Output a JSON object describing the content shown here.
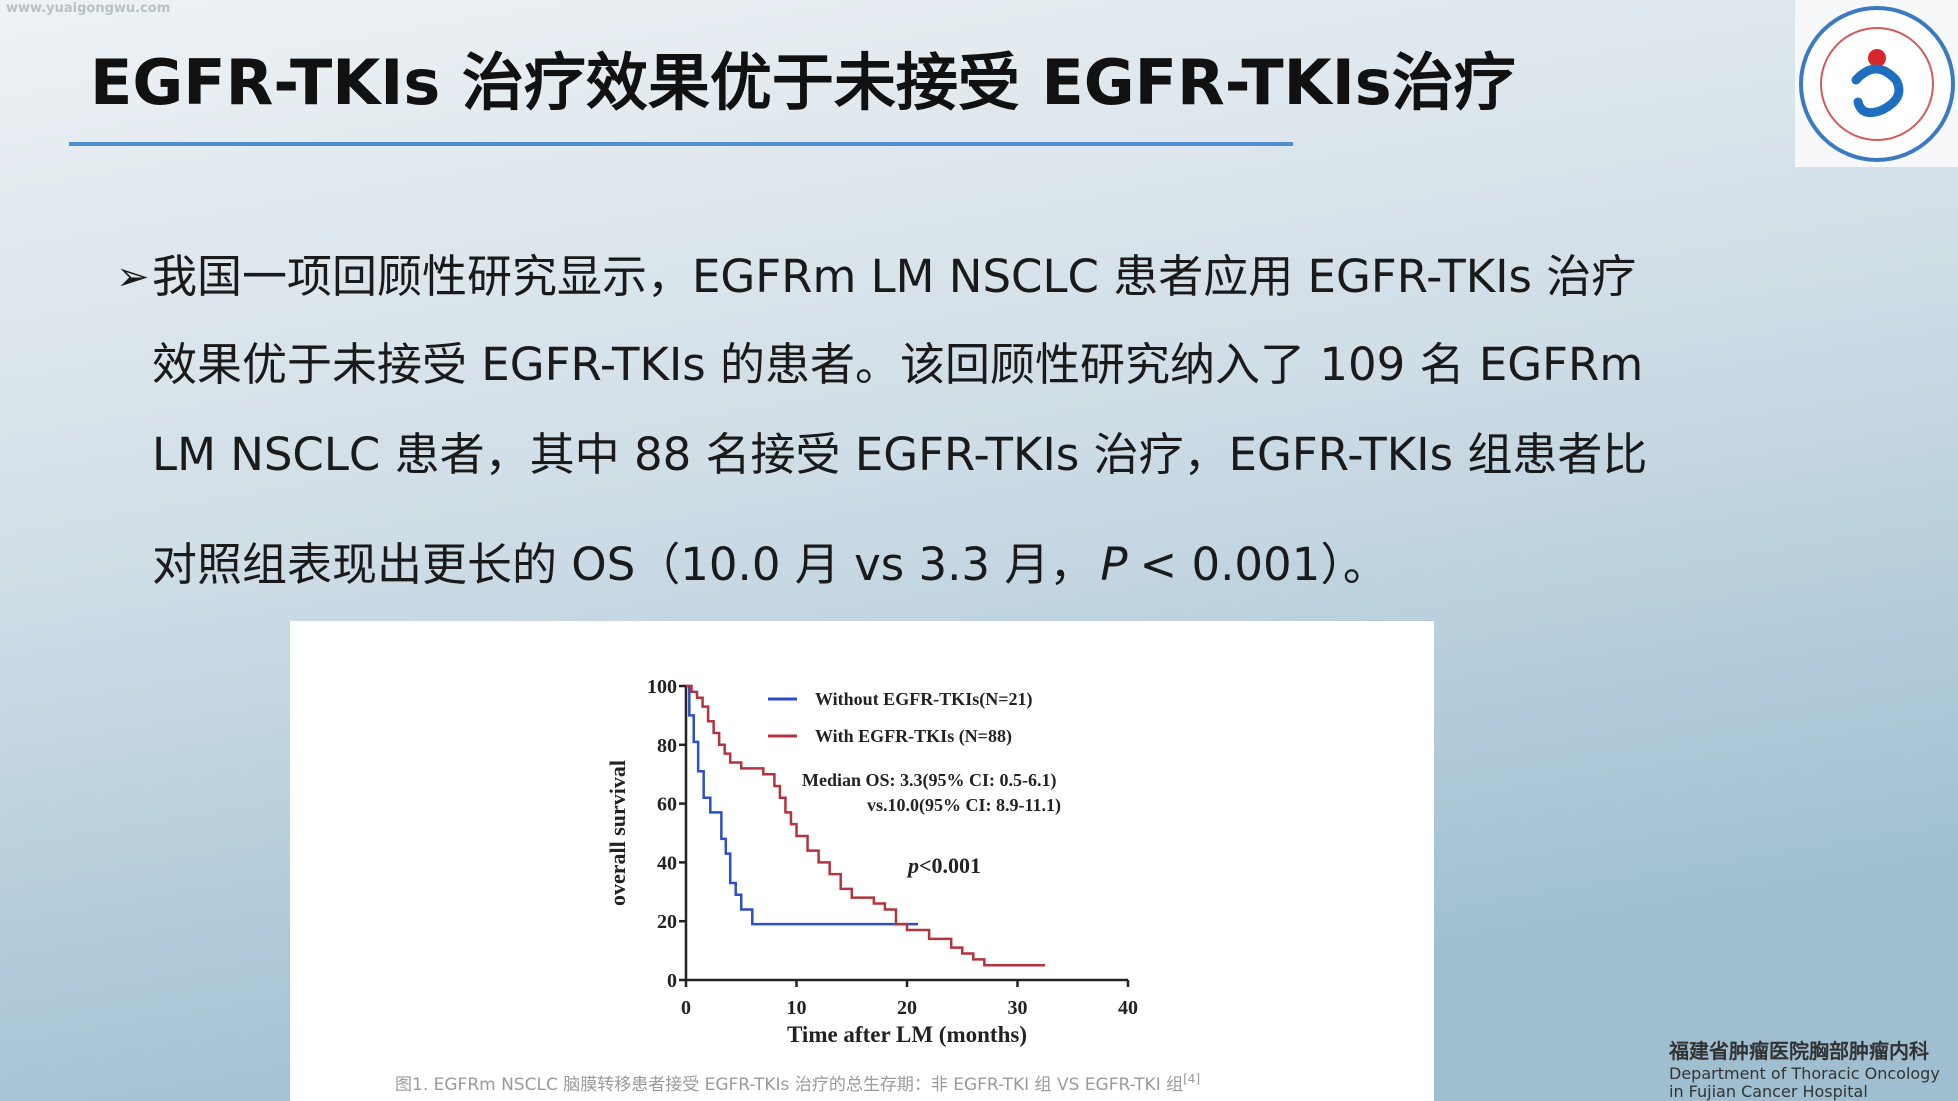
{
  "watermark": "www.yuaigongwu.com",
  "title": "EGFR-TKIs 治疗效果优于未接受 EGFR-TKIs治疗",
  "body": {
    "bullet": "➢",
    "lines": [
      "我国一项回顾性研究显示，EGFRm LM NSCLC 患者应用 EGFR-TKIs 治疗",
      "效果优于未接受 EGFR-TKIs 的患者。该回顾性研究纳入了 109 名 EGFRm",
      "LM NSCLC 患者，其中 88 名接受 EGFR-TKIs 治疗，EGFR-TKIs 组患者比"
    ],
    "last_line": [
      "对照组表现出更长的 OS（10.0 月 vs 3.3 月，",
      "P",
      "< 0.001）。"
    ]
  },
  "chart_data": {
    "type": "line",
    "step": true,
    "ylabel": "overall survival",
    "xlabel": "Time after LM (months)",
    "xlim": [
      0,
      40
    ],
    "ylim": [
      0,
      100
    ],
    "xticks": [
      0,
      10,
      20,
      30,
      40
    ],
    "yticks": [
      0,
      20,
      40,
      60,
      80,
      100
    ],
    "annotations": [
      "Median OS: 3.3(95% CI: 0.5-6.1)",
      "vs.10.0(95% CI: 8.9-11.1)"
    ],
    "p_annotation": [
      "p",
      "<0.001"
    ],
    "series": [
      {
        "name": "Without EGFR-TKIs(N=21)",
        "color": "#2b4fc4",
        "x": [
          0,
          0.3,
          0.3,
          0.7,
          0.7,
          1.1,
          1.1,
          1.6,
          1.6,
          2.2,
          2.2,
          3.2,
          3.2,
          3.6,
          3.6,
          4,
          4,
          4.5,
          4.5,
          5,
          5,
          6,
          6,
          21
        ],
        "values": [
          100,
          100,
          90,
          90,
          81,
          81,
          71,
          71,
          62,
          62,
          57,
          57,
          48,
          48,
          43,
          43,
          33,
          33,
          29,
          29,
          24,
          24,
          19,
          19
        ]
      },
      {
        "name": "With EGFR-TKIs (N=88)",
        "color": "#b3343c",
        "x": [
          0,
          0.5,
          0.5,
          1,
          1,
          1.5,
          1.5,
          2,
          2,
          2.5,
          2.5,
          3,
          3,
          3.5,
          3.5,
          4,
          4,
          5,
          5,
          7,
          7,
          8,
          8,
          8.5,
          8.5,
          9,
          9,
          9.5,
          9.5,
          10,
          10,
          11,
          11,
          12,
          12,
          13,
          13,
          14,
          14,
          15,
          15,
          17,
          17,
          18,
          18,
          19,
          19,
          20,
          20,
          22,
          22,
          24,
          24,
          25,
          25,
          26,
          26,
          27,
          27,
          32.5
        ],
        "values": [
          100,
          100,
          98,
          98,
          96,
          96,
          93,
          93,
          88,
          88,
          84,
          84,
          80,
          80,
          77,
          77,
          74,
          74,
          72,
          72,
          70,
          70,
          66,
          66,
          62,
          62,
          57,
          57,
          53,
          53,
          49,
          49,
          44,
          44,
          40,
          40,
          36,
          36,
          31,
          31,
          28,
          28,
          26,
          26,
          24,
          24,
          19,
          19,
          17,
          17,
          14,
          14,
          11,
          11,
          9,
          9,
          7,
          7,
          5,
          5
        ]
      }
    ]
  },
  "caption": {
    "text": "图1. EGFRm NSCLC 脑膜转移患者接受 EGFR-TKIs 治疗的总生存期：非 EGFR-TKI 组 VS EGFR-TKI 组",
    "ref": "[4]"
  },
  "footer": [
    "福建省肿瘤医院胸部肿瘤内科",
    "Department of Thoracic Oncology",
    "in Fujian Cancer Hospital"
  ]
}
